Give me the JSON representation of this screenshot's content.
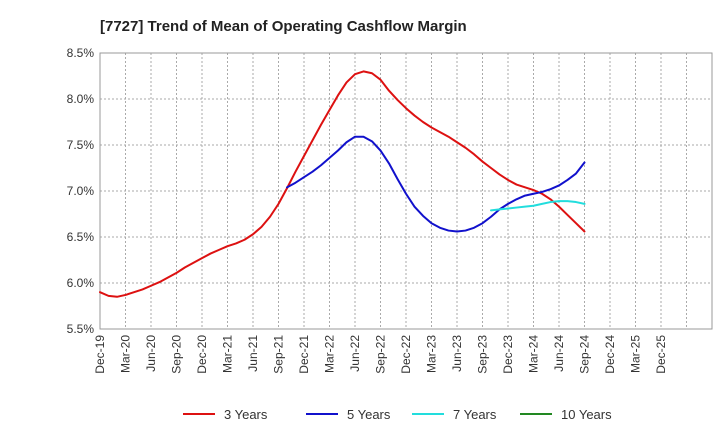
{
  "chart_data": {
    "type": "line",
    "title": "[7727]  Trend of Mean of Operating Cashflow Margin",
    "xlabel": "",
    "ylabel": "",
    "ylim": [
      5.5,
      8.5
    ],
    "yticks": [
      "5.5%",
      "6.0%",
      "6.5%",
      "7.0%",
      "7.5%",
      "8.0%",
      "8.5%"
    ],
    "ytick_values": [
      5.5,
      6.0,
      6.5,
      7.0,
      7.5,
      8.0,
      8.5
    ],
    "x_labels": [
      "Dec-19",
      "Mar-20",
      "Jun-20",
      "Sep-20",
      "Dec-20",
      "Mar-21",
      "Jun-21",
      "Sep-21",
      "Dec-21",
      "Mar-22",
      "Jun-22",
      "Sep-22",
      "Dec-22",
      "Mar-23",
      "Jun-23",
      "Sep-23",
      "Dec-23",
      "Mar-24",
      "Jun-24",
      "Sep-24",
      "Dec-24",
      "Mar-25"
    ],
    "x_labels_end": "Dec-25",
    "months_count": 72,
    "grid": true,
    "legend_position": "bottom",
    "series": [
      {
        "name": "3 Years",
        "color": "#dd1111",
        "points": [
          [
            0,
            5.9
          ],
          [
            1,
            5.86
          ],
          [
            2,
            5.85
          ],
          [
            3,
            5.87
          ],
          [
            4,
            5.9
          ],
          [
            5,
            5.93
          ],
          [
            6,
            5.97
          ],
          [
            7,
            6.01
          ],
          [
            8,
            6.06
          ],
          [
            9,
            6.11
          ],
          [
            10,
            6.17
          ],
          [
            11,
            6.22
          ],
          [
            12,
            6.27
          ],
          [
            13,
            6.32
          ],
          [
            14,
            6.36
          ],
          [
            15,
            6.4
          ],
          [
            16,
            6.43
          ],
          [
            17,
            6.47
          ],
          [
            18,
            6.53
          ],
          [
            19,
            6.61
          ],
          [
            20,
            6.72
          ],
          [
            21,
            6.86
          ],
          [
            22,
            7.03
          ],
          [
            23,
            7.21
          ],
          [
            24,
            7.38
          ],
          [
            25,
            7.55
          ],
          [
            26,
            7.72
          ],
          [
            27,
            7.88
          ],
          [
            28,
            8.04
          ],
          [
            29,
            8.18
          ],
          [
            30,
            8.27
          ],
          [
            31,
            8.3
          ],
          [
            32,
            8.28
          ],
          [
            33,
            8.21
          ],
          [
            34,
            8.09
          ],
          [
            35,
            7.99
          ],
          [
            36,
            7.9
          ],
          [
            37,
            7.82
          ],
          [
            38,
            7.75
          ],
          [
            39,
            7.69
          ],
          [
            40,
            7.64
          ],
          [
            41,
            7.59
          ],
          [
            42,
            7.53
          ],
          [
            43,
            7.47
          ],
          [
            44,
            7.4
          ],
          [
            45,
            7.32
          ],
          [
            46,
            7.25
          ],
          [
            47,
            7.18
          ],
          [
            48,
            7.12
          ],
          [
            49,
            7.07
          ],
          [
            50,
            7.04
          ],
          [
            51,
            7.01
          ],
          [
            52,
            6.97
          ],
          [
            53,
            6.91
          ],
          [
            54,
            6.83
          ],
          [
            55,
            6.74
          ],
          [
            56,
            6.65
          ],
          [
            57,
            6.56
          ]
        ]
      },
      {
        "name": "5 Years",
        "color": "#1111cc",
        "points": [
          [
            22,
            7.04
          ],
          [
            23,
            7.09
          ],
          [
            24,
            7.15
          ],
          [
            25,
            7.21
          ],
          [
            26,
            7.28
          ],
          [
            27,
            7.36
          ],
          [
            28,
            7.44
          ],
          [
            29,
            7.53
          ],
          [
            30,
            7.59
          ],
          [
            31,
            7.59
          ],
          [
            32,
            7.54
          ],
          [
            33,
            7.44
          ],
          [
            34,
            7.3
          ],
          [
            35,
            7.13
          ],
          [
            36,
            6.97
          ],
          [
            37,
            6.83
          ],
          [
            38,
            6.73
          ],
          [
            39,
            6.65
          ],
          [
            40,
            6.6
          ],
          [
            41,
            6.57
          ],
          [
            42,
            6.56
          ],
          [
            43,
            6.57
          ],
          [
            44,
            6.6
          ],
          [
            45,
            6.65
          ],
          [
            46,
            6.72
          ],
          [
            47,
            6.8
          ],
          [
            48,
            6.86
          ],
          [
            49,
            6.91
          ],
          [
            50,
            6.95
          ],
          [
            51,
            6.97
          ],
          [
            52,
            6.99
          ],
          [
            53,
            7.02
          ],
          [
            54,
            7.06
          ],
          [
            55,
            7.12
          ],
          [
            56,
            7.19
          ],
          [
            57,
            7.31
          ]
        ]
      },
      {
        "name": "7 Years",
        "color": "#22dddd",
        "points": [
          [
            46,
            6.79
          ],
          [
            47,
            6.8
          ],
          [
            48,
            6.81
          ],
          [
            49,
            6.82
          ],
          [
            50,
            6.83
          ],
          [
            51,
            6.84
          ],
          [
            52,
            6.86
          ],
          [
            53,
            6.88
          ],
          [
            54,
            6.89
          ],
          [
            55,
            6.89
          ],
          [
            56,
            6.88
          ],
          [
            57,
            6.86
          ]
        ]
      },
      {
        "name": "10 Years",
        "color": "#228822",
        "points": []
      }
    ]
  }
}
